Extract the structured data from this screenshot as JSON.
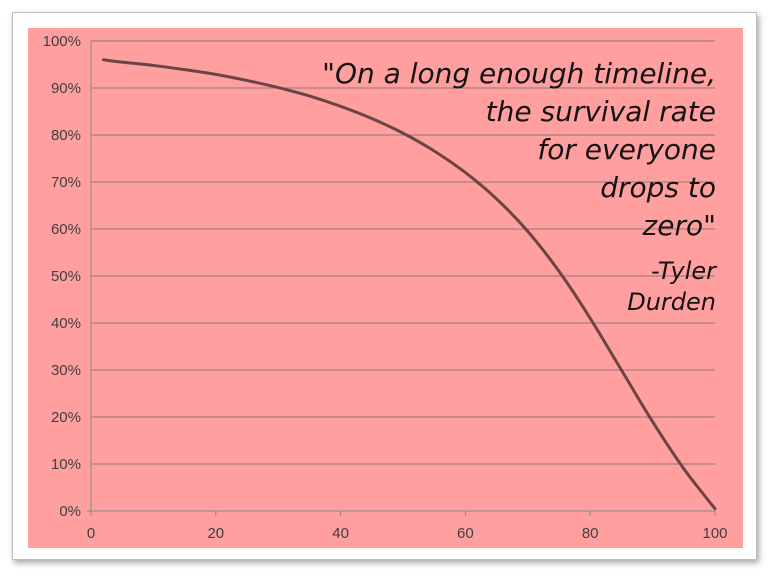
{
  "chart_data": {
    "type": "line",
    "title": "",
    "xlabel": "",
    "ylabel": "",
    "xlim": [
      0,
      100
    ],
    "ylim": [
      0,
      100
    ],
    "x_ticks": [
      "0",
      "20",
      "40",
      "60",
      "80",
      "100"
    ],
    "y_ticks": [
      "0%",
      "10%",
      "20%",
      "30%",
      "40%",
      "50%",
      "60%",
      "70%",
      "80%",
      "90%",
      "100%"
    ],
    "grid": "horizontal",
    "legend": "none",
    "series": [
      {
        "x": [
          2,
          5,
          10,
          15,
          20,
          25,
          30,
          35,
          40,
          45,
          50,
          55,
          60,
          65,
          70,
          75,
          80,
          85,
          90,
          95,
          100
        ],
        "y": [
          96,
          95.5,
          94.8,
          93.9,
          92.9,
          91.6,
          90.1,
          88.3,
          86.1,
          83.5,
          80.4,
          76.6,
          72.0,
          66.4,
          59.5,
          51.0,
          41.0,
          30.0,
          19.0,
          9.0,
          0.5
        ]
      }
    ],
    "annotation": {
      "quote_lines": [
        "\"On a long enough timeline,",
        "the survival rate",
        "for everyone",
        "drops to",
        "zero\""
      ],
      "attribution_lines": [
        "-Tyler",
        "Durden"
      ]
    },
    "colors": {
      "plot_background": "#ff9f9f",
      "chart_area": "#ffffff",
      "gridline": "#8c7a7a",
      "line": "#6b4545",
      "text": "#141414"
    }
  }
}
